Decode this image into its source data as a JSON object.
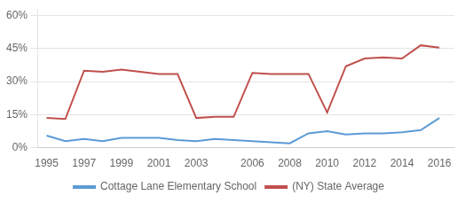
{
  "chart_data": {
    "type": "line",
    "x": [
      1995,
      1996,
      1997,
      1998,
      1999,
      2000,
      2001,
      2002,
      2003,
      2004,
      2005,
      2006,
      2007,
      2008,
      2009,
      2010,
      2011,
      2012,
      2013,
      2014,
      2015,
      2016
    ],
    "series": [
      {
        "name": "Cottage Lane Elementary School",
        "color": "#5b9bd5",
        "values": [
          5.5,
          3.0,
          4.0,
          3.0,
          4.5,
          4.5,
          4.5,
          3.5,
          3.0,
          4.0,
          3.5,
          3.0,
          2.5,
          2.0,
          6.5,
          7.5,
          6.0,
          6.5,
          6.5,
          7.0,
          8.0,
          13.5
        ]
      },
      {
        "name": "(NY) State Average",
        "color": "#c0504d",
        "values": [
          13.5,
          13.0,
          35.0,
          34.5,
          35.5,
          34.5,
          33.5,
          33.5,
          13.5,
          14.0,
          14.0,
          34.0,
          33.5,
          33.5,
          33.5,
          16.0,
          37.0,
          40.5,
          41.0,
          40.5,
          46.5,
          45.5
        ]
      }
    ],
    "xlim": [
      1994.5,
      2016.8
    ],
    "xticks": [
      1995,
      1997,
      1999,
      2001,
      2003,
      2006,
      2008,
      2010,
      2012,
      2014,
      2016
    ],
    "ylim": [
      0,
      63
    ],
    "yticks": [
      {
        "value": 0,
        "label": "0%"
      },
      {
        "value": 15,
        "label": "15%"
      },
      {
        "value": 30,
        "label": "30%"
      },
      {
        "value": 45,
        "label": "45%"
      },
      {
        "value": 60,
        "label": "60%"
      }
    ],
    "grid": "y",
    "legend": "bottom"
  }
}
